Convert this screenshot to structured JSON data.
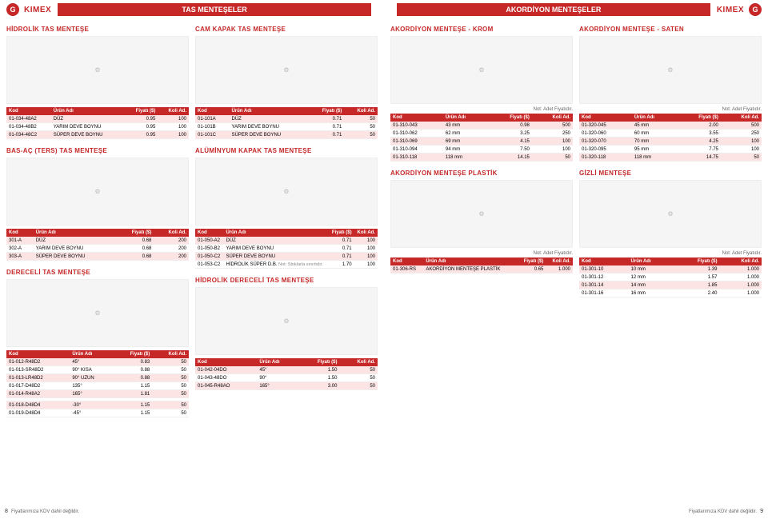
{
  "brand": "KIMEX",
  "cat_left": "TAS MENTEŞELER",
  "cat_right": "AKORDİYON MENTEŞELER",
  "foot": "Fiyatlarımıza KDV dahil değildir.",
  "pg_l": "8",
  "pg_r": "9",
  "th": {
    "kod": "Kod",
    "urun": "Ürün Adı",
    "fiyat": "Fiyatı ($)",
    "koli": "Koli Ad."
  },
  "note_adet": "Not: Adet Fiyatıdır.",
  "s1": {
    "t": "HİDROLİK TAS MENTEŞE",
    "rows": [
      [
        "01-034-48A2",
        "DÜZ",
        "0.95",
        "100"
      ],
      [
        "01-034-48B2",
        "YARIM DEVE BOYNU",
        "0.95",
        "100"
      ],
      [
        "01-034-48C2",
        "SÜPER DEVE BOYNU",
        "0.95",
        "100"
      ]
    ]
  },
  "s2": {
    "t": "CAM KAPAK TAS MENTEŞE",
    "rows": [
      [
        "01-101A",
        "DÜZ",
        "0.71",
        "50"
      ],
      [
        "01-101B",
        "YARIM DEVE BOYNU",
        "0.71",
        "50"
      ],
      [
        "01-101C",
        "SÜPER DEVE BOYNU",
        "0.71",
        "50"
      ]
    ]
  },
  "s3": {
    "t": "BAS-AÇ (TERS) TAS MENTEŞE",
    "rows": [
      [
        "301-A",
        "DÜZ",
        "0.68",
        "200"
      ],
      [
        "302-A",
        "YARIM DEVE BOYNU",
        "0.68",
        "200"
      ],
      [
        "303-A",
        "SÜPER DEVE BOYNU",
        "0.68",
        "200"
      ]
    ]
  },
  "s4": {
    "t": "ALÜMİNYUM KAPAK TAS MENTEŞE",
    "rows": [
      [
        "01-050-A2",
        "DÜZ",
        "0.71",
        "100"
      ],
      [
        "01-050-B2",
        "YARIM DEVE BOYNU",
        "0.71",
        "100"
      ],
      [
        "01-050-C2",
        "SÜPER DEVE BOYNU",
        "0.71",
        "100"
      ],
      [
        "01-053-C2",
        "HİDROLİK SÜPER D.B.",
        "1.70",
        "100"
      ]
    ],
    "note4": "Not: Stoklarla sınırlıdır."
  },
  "s5": {
    "t": "DERECELİ TAS MENTEŞE",
    "rows": [
      [
        "01-012-R48D2",
        "45°",
        "0.83",
        "50"
      ],
      [
        "01-013-SR48D2",
        "90° KISA",
        "0.88",
        "50"
      ],
      [
        "01-013-LR48D2",
        "90° UZUN",
        "0.88",
        "50"
      ],
      [
        "01-017-D48D2",
        "135°",
        "1.15",
        "50"
      ],
      [
        "01-014-R48A2",
        "165°",
        "1.81",
        "50"
      ],
      [
        "",
        "",
        "",
        ""
      ],
      [
        "01-018-D48D4",
        "-30°",
        "1.15",
        "50"
      ],
      [
        "01-019-D48D4",
        "-45°",
        "1.15",
        "50"
      ]
    ]
  },
  "s6": {
    "t": "HİDROLİK DERECELİ TAS MENTEŞE",
    "rows": [
      [
        "01-042-04DO",
        "45°",
        "1.50",
        "50"
      ],
      [
        "01-043-48DO",
        "90°",
        "1.50",
        "50"
      ],
      [
        "01-045-R48AO",
        "165°",
        "3.00",
        "50"
      ]
    ]
  },
  "r1": {
    "t": "AKORDİYON MENTEŞE - KROM",
    "rows": [
      [
        "01-310-043",
        "43 mm",
        "0.98",
        "500"
      ],
      [
        "01-310-062",
        "62 mm",
        "3.25",
        "250"
      ],
      [
        "01-310-069",
        "69 mm",
        "4.15",
        "100"
      ],
      [
        "01-310-094",
        "94 mm",
        "7.50",
        "100"
      ],
      [
        "01-310-118",
        "118 mm",
        "14.15",
        "50"
      ]
    ]
  },
  "r2": {
    "t": "AKORDİYON MENTEŞE - SATEN",
    "rows": [
      [
        "01-320-045",
        "45 mm",
        "2.00",
        "500"
      ],
      [
        "01-320-060",
        "60 mm",
        "3.55",
        "250"
      ],
      [
        "01-320-070",
        "70 mm",
        "4.25",
        "100"
      ],
      [
        "01-320-095",
        "95 mm",
        "7.75",
        "100"
      ],
      [
        "01-320-118",
        "118 mm",
        "14.75",
        "50"
      ]
    ]
  },
  "r3": {
    "t": "AKORDİYON MENTEŞE PLASTİK",
    "rows": [
      [
        "01-306-RS",
        "AKORDİYON MENTEŞE PLASTİK",
        "0.65",
        "1.000"
      ]
    ]
  },
  "r4": {
    "t": "GİZLİ MENTEŞE",
    "rows": [
      [
        "01-301-10",
        "10 mm",
        "1.39",
        "1.000"
      ],
      [
        "01-301-12",
        "12 mm",
        "1.57",
        "1.000"
      ],
      [
        "01-301-14",
        "14 mm",
        "1.85",
        "1.000"
      ],
      [
        "01-301-16",
        "16 mm",
        "2.40",
        "1.000"
      ]
    ]
  }
}
